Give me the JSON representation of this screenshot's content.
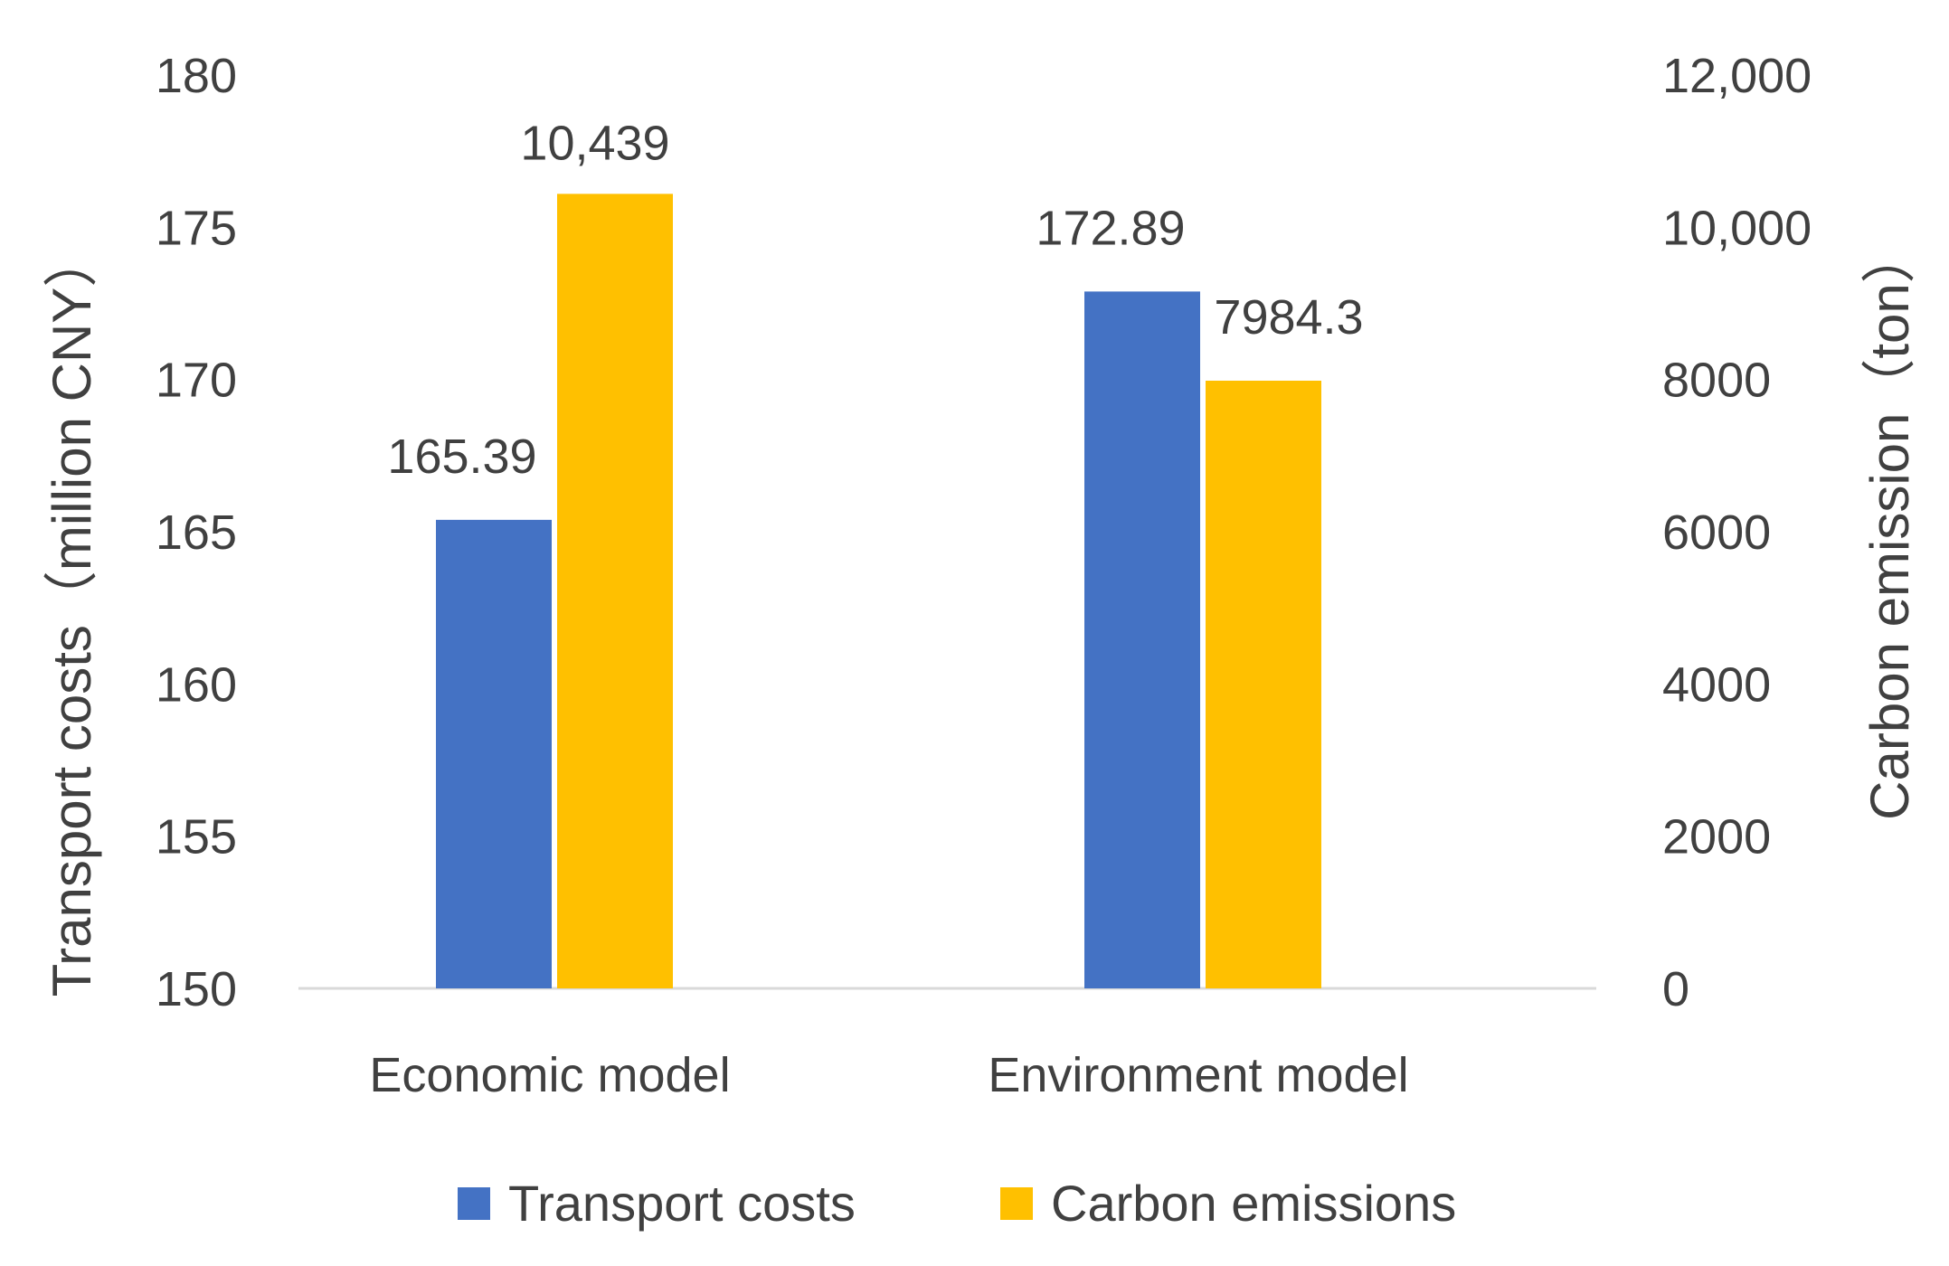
{
  "chart_data": {
    "type": "bar",
    "categories": [
      "Economic model",
      "Environment model"
    ],
    "series": [
      {
        "name": "Transport costs",
        "axis": "left",
        "color": "#4472C4",
        "values": [
          165.39,
          172.89
        ],
        "data_labels": [
          "165.39",
          "172.89"
        ]
      },
      {
        "name": "Carbon emissions",
        "axis": "right",
        "color": "#FFC000",
        "values": [
          10439,
          7984.3
        ],
        "data_labels": [
          "10,439",
          "7984.3"
        ]
      }
    ],
    "ylabel": "Transport costs（million CNY）",
    "y2label": "Carbon emission（ton）",
    "ylim": [
      150,
      180
    ],
    "y2lim": [
      0,
      12000
    ],
    "yticks": [
      "150",
      "155",
      "160",
      "165",
      "170",
      "175",
      "180"
    ],
    "y2ticks": [
      "0",
      "2000",
      "4000",
      "6000",
      "8000",
      "10,000",
      "12,000"
    ],
    "grid": false,
    "legend_position": "bottom"
  }
}
